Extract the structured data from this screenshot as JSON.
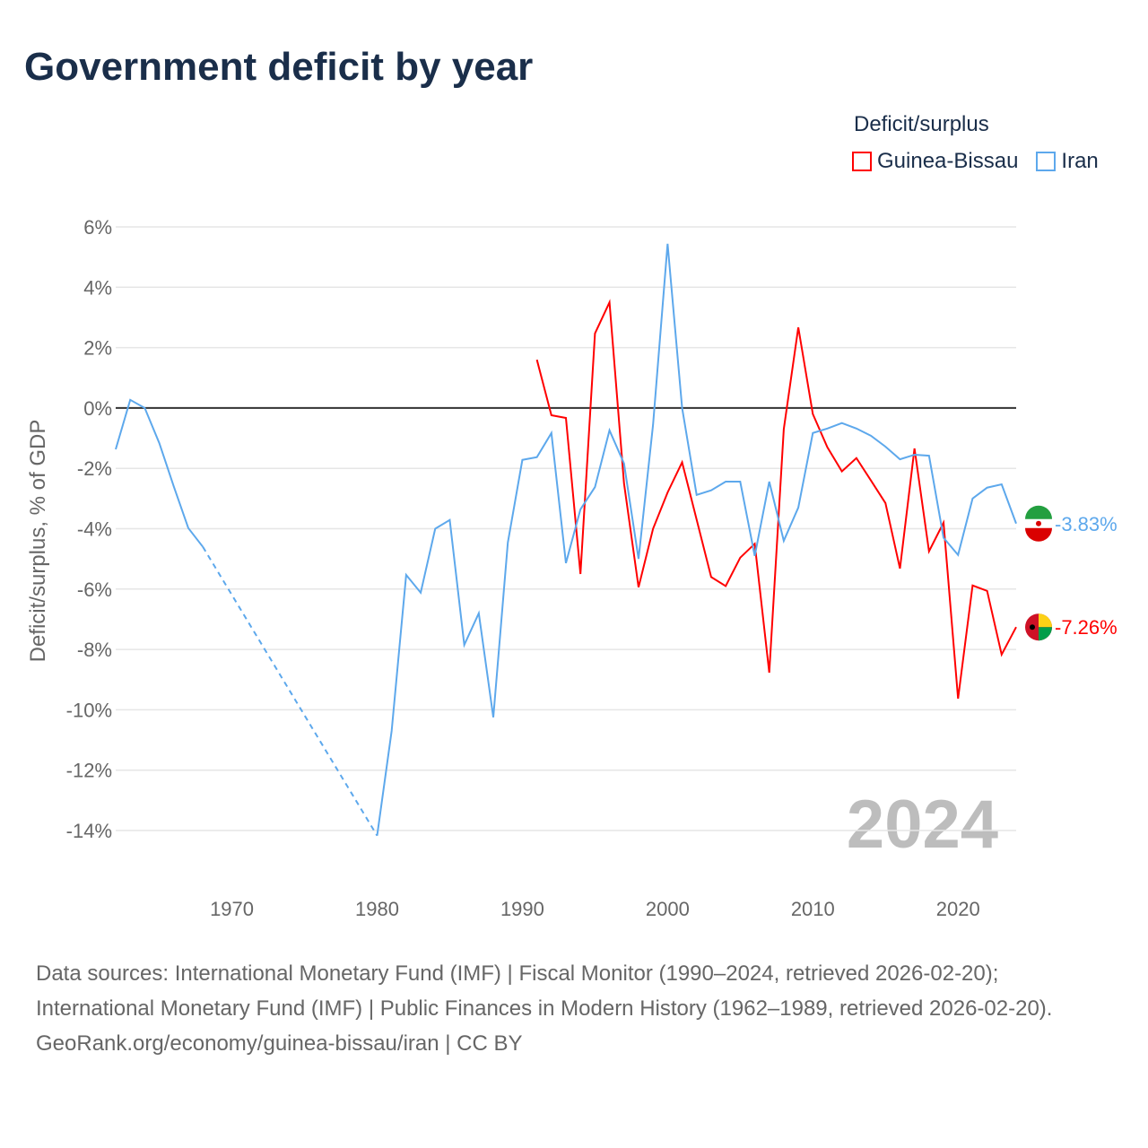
{
  "title": "Government deficit by year",
  "legend": {
    "title": "Deficit/surplus",
    "items": [
      {
        "label": "Guinea-Bissau",
        "color": "#ff0000"
      },
      {
        "label": "Iran",
        "color": "#5da8ec"
      }
    ]
  },
  "footer": {
    "sources": "Data sources: International Monetary Fund (IMF) | Fiscal Monitor (1990–2024, retrieved 2026-02-20); International Monetary Fund (IMF) | Public Finances in Modern History (1962–1989, retrieved 2026-02-20).",
    "link": "GeoRank.org/economy/guinea-bissau/iran | CC BY"
  },
  "chart_data": {
    "type": "line",
    "title": "Government deficit by year",
    "xlabel": "",
    "ylabel": "Deficit/surplus, % of GDP",
    "xlim": [
      1962,
      2024
    ],
    "ylim": [
      -14,
      6
    ],
    "yticks": [
      6,
      4,
      2,
      0,
      -2,
      -4,
      -6,
      -8,
      -10,
      -12,
      -14
    ],
    "ytick_labels": [
      "6%",
      "4%",
      "2%",
      "0%",
      "-2%",
      "-4%",
      "-6%",
      "-8%",
      "-10%",
      "-12%",
      "-14%"
    ],
    "xticks": [
      1970,
      1980,
      1990,
      2000,
      2010,
      2020
    ],
    "xtick_labels": [
      "1970",
      "1980",
      "1990",
      "2000",
      "2010",
      "2020"
    ],
    "year_label": "2024",
    "grid": true,
    "legend_position": "top-right",
    "series": [
      {
        "name": "Guinea-Bissau",
        "color": "#ff0000",
        "end_label": "-7.26%",
        "flag": "guinea-bissau-flag",
        "x": [
          1991,
          1992,
          1993,
          1994,
          1995,
          1996,
          1997,
          1998,
          1999,
          2000,
          2001,
          2002,
          2003,
          2004,
          2005,
          2006,
          2007,
          2008,
          2009,
          2010,
          2011,
          2012,
          2013,
          2014,
          2015,
          2016,
          2017,
          2018,
          2019,
          2020,
          2021,
          2022,
          2023,
          2024
        ],
        "values": [
          1.6,
          -0.24,
          -0.33,
          -5.5,
          2.47,
          3.5,
          -2.5,
          -5.94,
          -4.0,
          -2.8,
          -1.8,
          -3.7,
          -5.6,
          -5.9,
          -4.96,
          -4.5,
          -8.77,
          -0.7,
          2.67,
          -0.2,
          -1.3,
          -2.1,
          -1.66,
          -2.4,
          -3.15,
          -5.32,
          -1.34,
          -4.75,
          -3.8,
          -9.63,
          -5.88,
          -6.06,
          -8.17,
          -7.26
        ]
      },
      {
        "name": "Iran",
        "color": "#5da8ec",
        "end_label": "-3.83%",
        "flag": "iran-flag",
        "gap_dashed": [
          1968,
          1980
        ],
        "x": [
          1962,
          1963,
          1964,
          1965,
          1966,
          1967,
          1968,
          1980,
          1981,
          1982,
          1983,
          1984,
          1985,
          1986,
          1987,
          1988,
          1989,
          1990,
          1991,
          1992,
          1993,
          1994,
          1995,
          1996,
          1997,
          1998,
          1999,
          2000,
          2001,
          2002,
          2003,
          2004,
          2005,
          2006,
          2007,
          2008,
          2009,
          2010,
          2011,
          2012,
          2013,
          2014,
          2015,
          2016,
          2017,
          2018,
          2019,
          2020,
          2021,
          2022,
          2023,
          2024
        ],
        "values": [
          -1.37,
          0.27,
          0.0,
          -1.16,
          -2.6,
          -3.98,
          -4.6,
          -14.17,
          -10.7,
          -5.53,
          -6.12,
          -4.0,
          -3.71,
          -7.85,
          -6.8,
          -10.25,
          -4.46,
          -1.72,
          -1.63,
          -0.83,
          -5.14,
          -3.36,
          -2.62,
          -0.74,
          -1.84,
          -5.0,
          -0.55,
          5.44,
          0.0,
          -2.88,
          -2.73,
          -2.44,
          -2.44,
          -4.9,
          -2.44,
          -4.4,
          -3.3,
          -0.83,
          -0.68,
          -0.5,
          -0.68,
          -0.92,
          -1.28,
          -1.7,
          -1.55,
          -1.58,
          -4.3,
          -4.87,
          -3.0,
          -2.64,
          -2.53,
          -3.83
        ]
      }
    ]
  }
}
